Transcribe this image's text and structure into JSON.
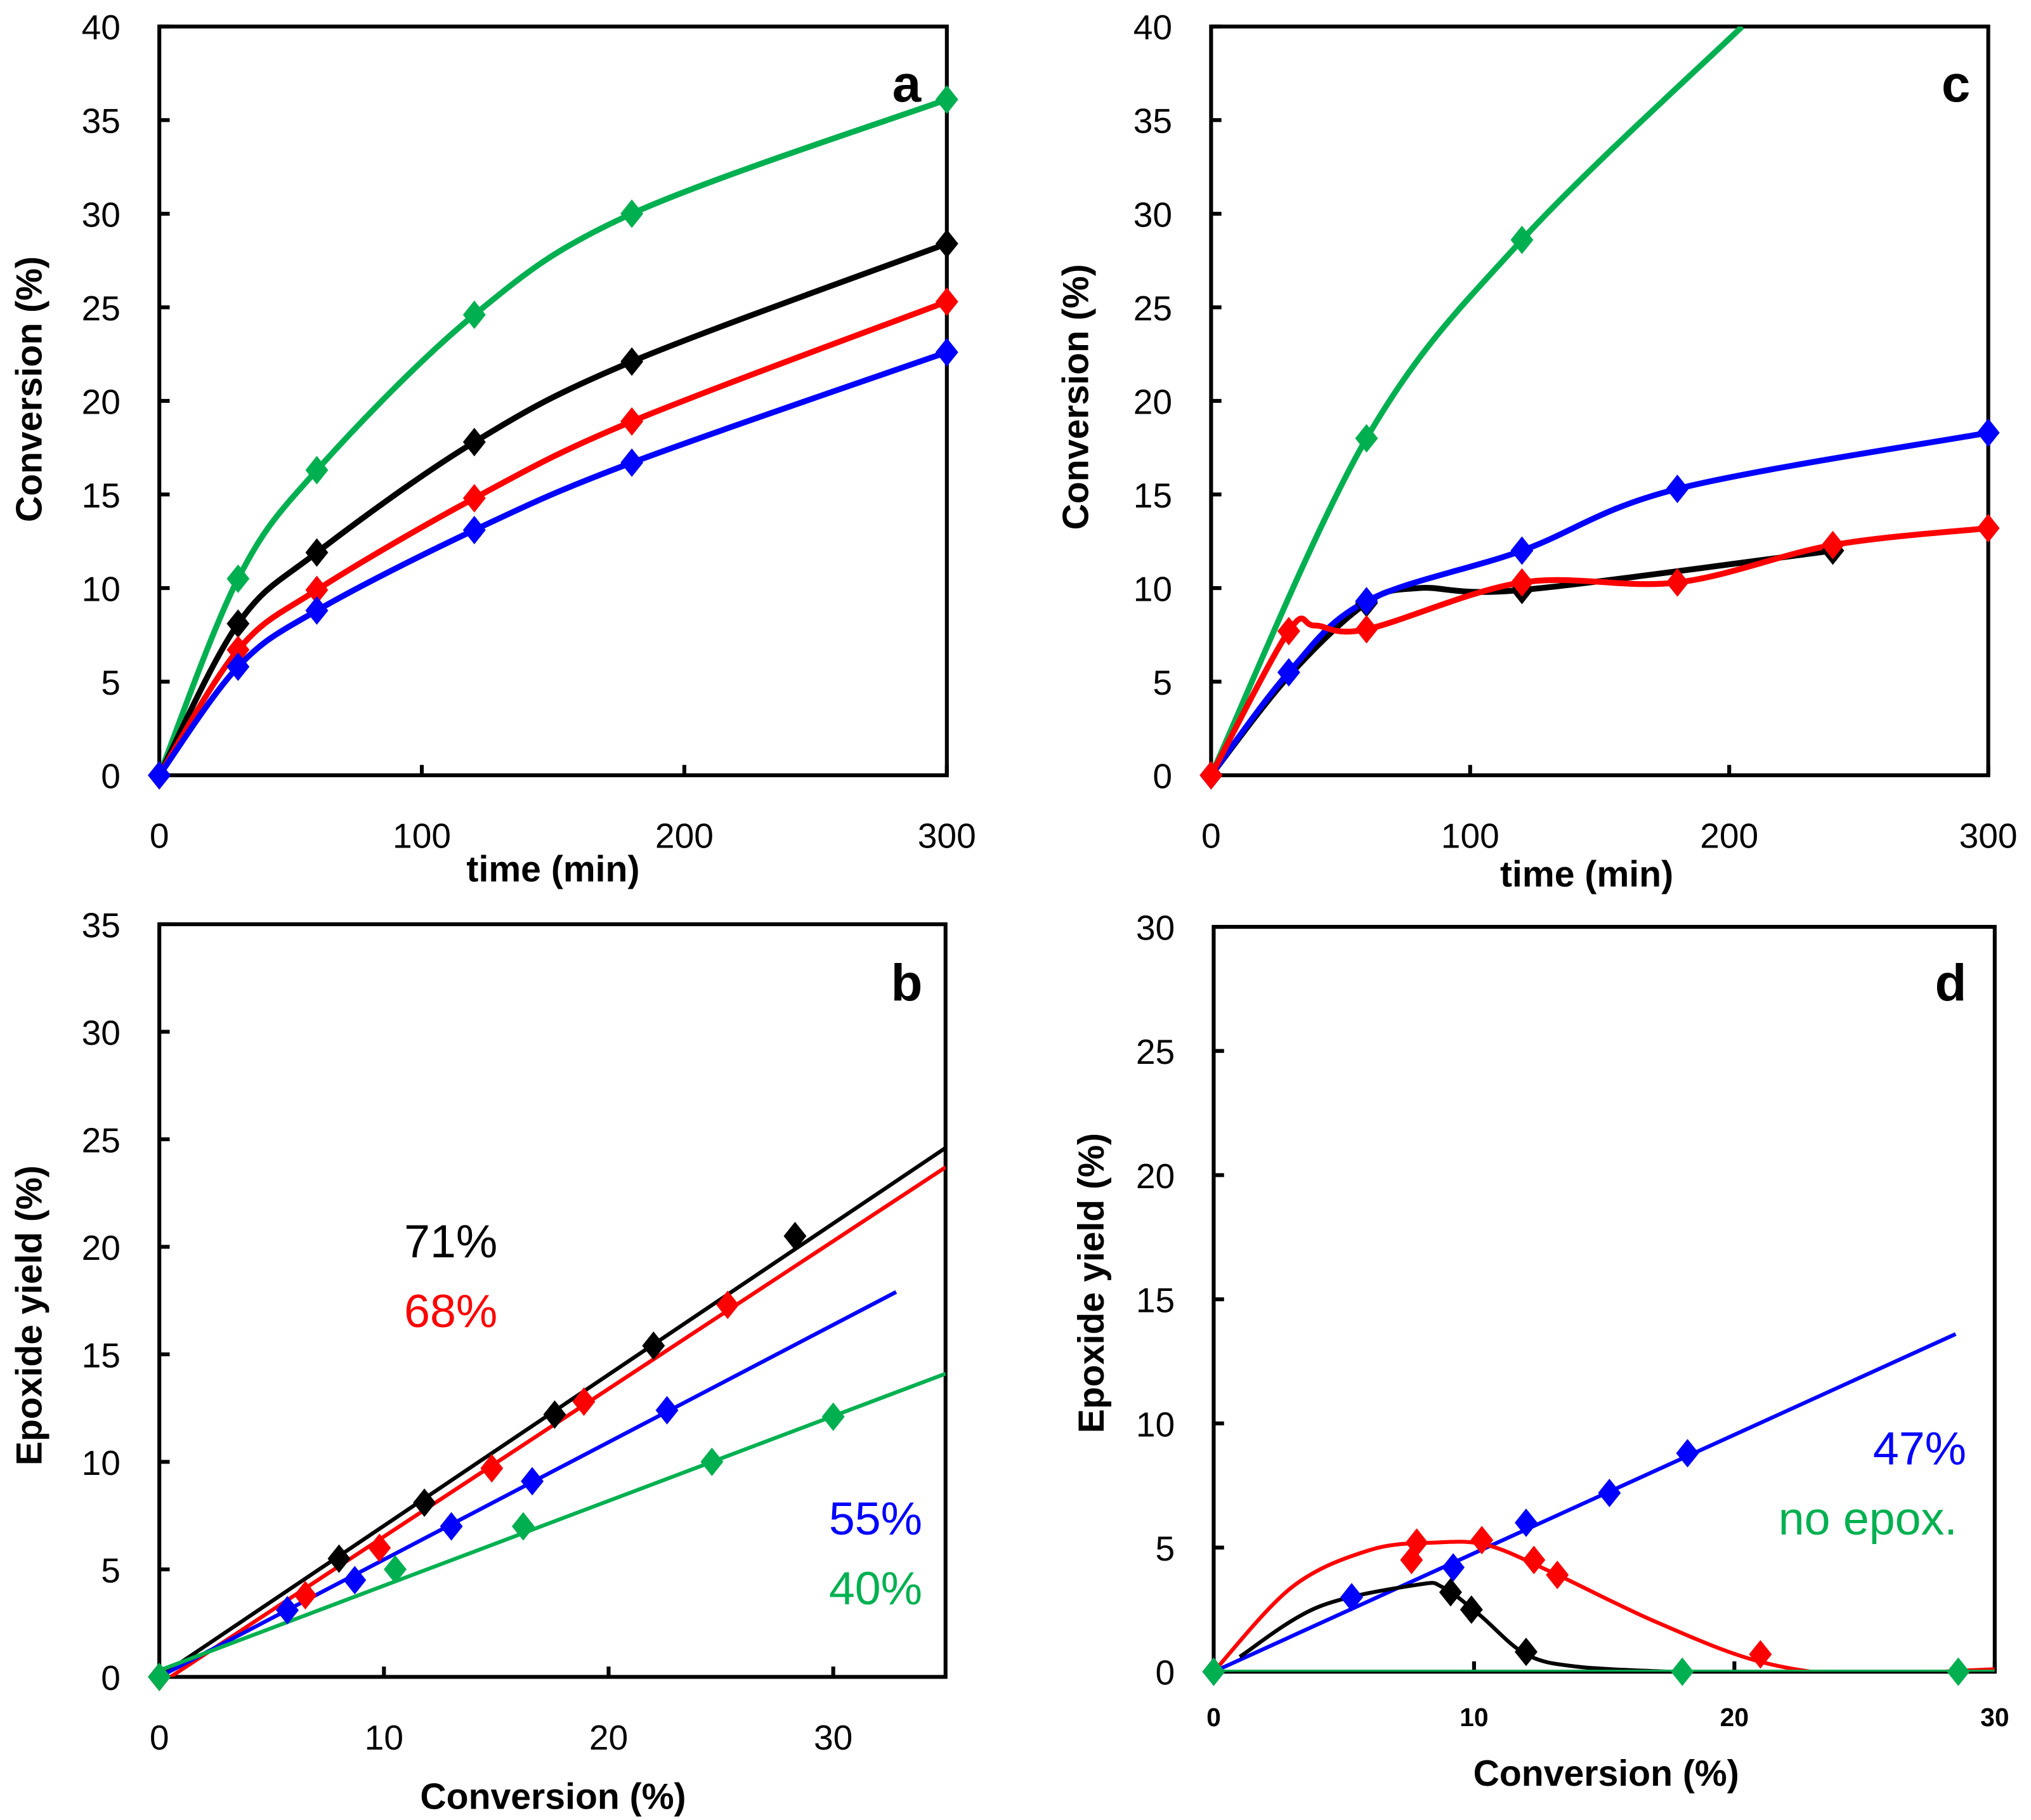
{
  "colors": {
    "black": "#000000",
    "red": "#ff0000",
    "blue": "#0000ff",
    "green": "#00b050"
  },
  "chart_data": [
    {
      "panel": "a",
      "type": "line",
      "xlabel": "time (min)",
      "ylabel": "Conversion (%)",
      "xlim": [
        0,
        300
      ],
      "ylim": [
        0,
        40
      ],
      "xticks": [
        0,
        100,
        200,
        300
      ],
      "yticks": [
        0,
        5,
        10,
        15,
        20,
        25,
        30,
        35,
        40
      ],
      "series": [
        {
          "name": "green",
          "color": "green",
          "x": [
            0,
            30,
            60,
            120,
            180,
            300
          ],
          "y": [
            0,
            10.5,
            16.3,
            24.6,
            30,
            36.1
          ]
        },
        {
          "name": "black",
          "color": "black",
          "x": [
            0,
            30,
            60,
            120,
            180,
            300
          ],
          "y": [
            0,
            8.1,
            11.9,
            17.8,
            22.1,
            28.4
          ]
        },
        {
          "name": "red",
          "color": "red",
          "x": [
            0,
            30,
            60,
            120,
            180,
            300
          ],
          "y": [
            0,
            6.7,
            9.9,
            14.8,
            18.9,
            25.3
          ]
        },
        {
          "name": "blue",
          "color": "blue",
          "x": [
            0,
            30,
            60,
            120,
            180,
            300
          ],
          "y": [
            0,
            5.8,
            8.8,
            13.1,
            16.7,
            22.6
          ]
        }
      ]
    },
    {
      "panel": "c",
      "type": "line",
      "xlabel": "time (min)",
      "ylabel": "Conversion (%)",
      "xlim": [
        0,
        300
      ],
      "ylim": [
        0,
        40
      ],
      "xticks": [
        0,
        100,
        200,
        300
      ],
      "yticks": [
        0,
        5,
        10,
        15,
        20,
        25,
        30,
        35,
        40
      ],
      "series": [
        {
          "name": "green",
          "color": "green",
          "x": [
            0,
            60,
            120
          ],
          "y": [
            0,
            18,
            28.6
          ],
          "curve_x": [
            0,
            60,
            120,
            205
          ],
          "curve_y": [
            0,
            18,
            28.6,
            40
          ]
        },
        {
          "name": "black",
          "color": "black",
          "x": [
            0,
            60,
            120,
            240
          ],
          "y": [
            0,
            9.2,
            9.9,
            12
          ],
          "curve_x": [
            0,
            30,
            60,
            80,
            120,
            240
          ],
          "curve_y": [
            0,
            5.3,
            9.2,
            10,
            9.9,
            12
          ]
        },
        {
          "name": "blue",
          "color": "blue",
          "x": [
            0,
            30,
            60,
            120,
            180,
            300
          ],
          "y": [
            0,
            5.5,
            9.3,
            12,
            15.3,
            18.3
          ]
        },
        {
          "name": "red",
          "color": "red",
          "x": [
            0,
            30,
            60,
            120,
            180,
            240,
            300
          ],
          "y": [
            0,
            7.7,
            7.8,
            10.3,
            10.3,
            12.3,
            13.2
          ],
          "curve_x": [
            0,
            30,
            40,
            60,
            120,
            180,
            240,
            300
          ],
          "curve_y": [
            0,
            7.7,
            8,
            7.8,
            10.3,
            10.3,
            12.3,
            13.2
          ]
        }
      ]
    },
    {
      "panel": "b",
      "type": "scatter",
      "xlabel": "Conversion (%)",
      "ylabel": "Epoxide yield (%)",
      "xlim": [
        0,
        35
      ],
      "ylim": [
        0,
        35
      ],
      "xticks": [
        0,
        10,
        20,
        30
      ],
      "yticks": [
        0,
        5,
        10,
        15,
        20,
        25,
        30,
        35
      ],
      "annotations": [
        {
          "text": "71%",
          "color": "black"
        },
        {
          "text": "68%",
          "color": "red"
        },
        {
          "text": "55%",
          "color": "blue"
        },
        {
          "text": "40%",
          "color": "green"
        }
      ],
      "series": [
        {
          "name": "black",
          "color": "black",
          "x": [
            0,
            8,
            11.8,
            17.6,
            22,
            28.3
          ],
          "y": [
            0,
            5.5,
            8.1,
            12.2,
            15.4,
            20.5
          ],
          "fit_x": [
            0,
            35
          ],
          "fit_y": [
            0,
            24.6
          ]
        },
        {
          "name": "red",
          "color": "red",
          "x": [
            0,
            6.5,
            9.8,
            14.8,
            18.9,
            25.3
          ],
          "y": [
            0,
            3.8,
            6,
            9.7,
            12.8,
            17.3
          ],
          "fit_x": [
            0.5,
            35
          ],
          "fit_y": [
            0,
            23.7
          ]
        },
        {
          "name": "blue",
          "color": "blue",
          "x": [
            5.7,
            8.7,
            13,
            16.6,
            22.6
          ],
          "y": [
            3.1,
            4.5,
            7,
            9.1,
            12.4
          ],
          "fit_x": [
            0,
            32.8
          ],
          "fit_y": [
            0,
            17.9
          ]
        },
        {
          "name": "green",
          "color": "green",
          "x": [
            0,
            10.5,
            16.2,
            24.6,
            30
          ],
          "y": [
            0,
            5,
            7,
            10,
            12.1
          ],
          "fit_x": [
            0,
            35
          ],
          "fit_y": [
            0.3,
            14.1
          ]
        }
      ]
    },
    {
      "panel": "d",
      "type": "scatter",
      "xlabel": "Conversion (%)",
      "ylabel": "Epoxide yield (%)",
      "xlim": [
        0,
        30
      ],
      "ylim": [
        0,
        30
      ],
      "xticks": [
        0,
        10,
        20,
        30
      ],
      "yticks": [
        0,
        5,
        10,
        15,
        20,
        25,
        30
      ],
      "annotations": [
        {
          "text": "47%",
          "color": "blue"
        },
        {
          "text": "no epox.",
          "color": "green"
        }
      ],
      "series": [
        {
          "name": "blue",
          "color": "blue",
          "x": [
            0,
            5.3,
            9.2,
            12,
            15.2,
            18.2
          ],
          "y": [
            0,
            3,
            4.2,
            6,
            7.2,
            8.8
          ],
          "fit_x": [
            0,
            28.5
          ],
          "fit_y": [
            0,
            13.6
          ]
        },
        {
          "name": "red",
          "color": "red",
          "x": [
            7.6,
            7.8,
            10.3,
            12.3,
            13.2,
            21
          ],
          "y": [
            4.5,
            5.2,
            5.3,
            4.5,
            3.9,
            0.7
          ],
          "curve_x": [
            0,
            3,
            6,
            8.5,
            10.5,
            13,
            17,
            21,
            25,
            28,
            30
          ],
          "curve_y": [
            0,
            3.4,
            4.9,
            5.2,
            5.1,
            4,
            2,
            0.4,
            -0.2,
            0,
            0.1
          ]
        },
        {
          "name": "black",
          "color": "black",
          "x": [
            9.1,
            9.9,
            12
          ],
          "y": [
            3.2,
            2.5,
            0.8
          ],
          "curve_x": [
            1,
            4,
            7.8,
            8.8,
            10.2,
            12,
            14,
            17.5
          ],
          "curve_y": [
            0.6,
            2.6,
            3.5,
            3.4,
            2.3,
            0.7,
            0.2,
            0
          ]
        },
        {
          "name": "green",
          "color": "green",
          "x": [
            0,
            18,
            28.6
          ],
          "y": [
            0,
            0,
            0
          ],
          "fit_x": [
            0,
            30
          ],
          "fit_y": [
            0,
            0
          ]
        }
      ]
    }
  ]
}
